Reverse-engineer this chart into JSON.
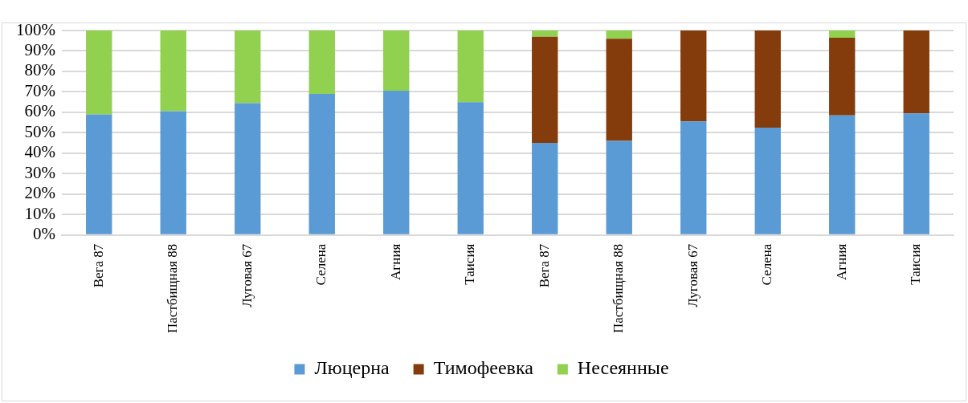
{
  "chart_data": {
    "type": "bar",
    "stacked": true,
    "categories": [
      "Вега 87",
      "Пастбищная 88",
      "Луговая 67",
      "Селена",
      "Агния",
      "Таисия",
      "Вега 87",
      "Пастбищная 88",
      "Луговая 67",
      "Селена",
      "Агния",
      "Таисия"
    ],
    "series": [
      {
        "name": "Люцерна",
        "color": "#5b9bd5",
        "values": [
          59,
          60.5,
          64.5,
          69,
          70.5,
          65,
          45,
          46,
          55.5,
          52.5,
          58.5,
          59.5
        ]
      },
      {
        "name": "Тимофеевка",
        "color": "#843c0c",
        "values": [
          0,
          0,
          0,
          0,
          0,
          0,
          52,
          50,
          44.5,
          47.5,
          38,
          40.5
        ]
      },
      {
        "name": "Несеянные",
        "color": "#92d050",
        "values": [
          41,
          39.5,
          35.5,
          31,
          29.5,
          35,
          3,
          4,
          0,
          0,
          3.5,
          0
        ]
      }
    ],
    "ylim": [
      0,
      100
    ],
    "yticks": [
      {
        "value": 0,
        "label": "0%"
      },
      {
        "value": 10,
        "label": "10%"
      },
      {
        "value": 20,
        "label": "20%"
      },
      {
        "value": 30,
        "label": "30%"
      },
      {
        "value": 40,
        "label": "40%"
      },
      {
        "value": 50,
        "label": "50%"
      },
      {
        "value": 60,
        "label": "60%"
      },
      {
        "value": 70,
        "label": "70%"
      },
      {
        "value": 80,
        "label": "80%"
      },
      {
        "value": 90,
        "label": "90%"
      },
      {
        "value": 100,
        "label": "100%"
      }
    ],
    "grid": "y",
    "legend": "bottom"
  }
}
